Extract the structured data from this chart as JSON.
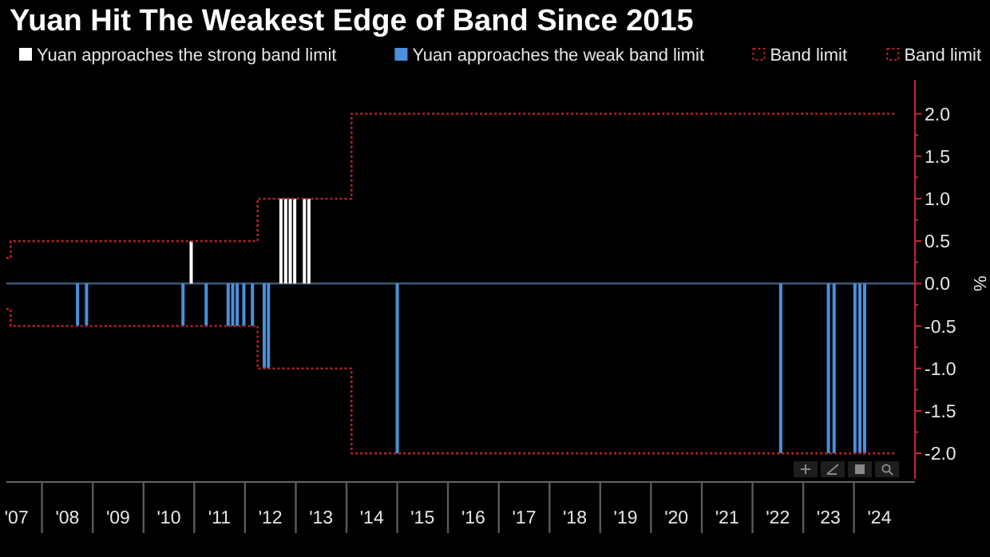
{
  "chart_data": {
    "type": "bar",
    "title": "Yuan Hit The Weakest Edge of Band Since 2015",
    "ylabel": "%",
    "legend": "top left",
    "grid": false,
    "ref_lines": [
      {
        "axis": "y",
        "value": 0,
        "color": "#3a5a78"
      }
    ],
    "xlim": [
      "2007-04-20",
      "2025-03-15"
    ],
    "ylim": [
      -2.3,
      2.4
    ],
    "xticks": [
      {
        "value": "2007-07-02",
        "label": "'07"
      },
      {
        "value": "2008-01-01",
        "label": null
      },
      {
        "value": "2008-07-02",
        "label": "'08"
      },
      {
        "value": "2009-01-01",
        "label": null
      },
      {
        "value": "2009-07-02",
        "label": "'09"
      },
      {
        "value": "2010-01-01",
        "label": null
      },
      {
        "value": "2010-07-02",
        "label": "'10"
      },
      {
        "value": "2011-01-01",
        "label": null
      },
      {
        "value": "2011-07-02",
        "label": "'11"
      },
      {
        "value": "2012-01-01",
        "label": null
      },
      {
        "value": "2012-07-02",
        "label": "'12"
      },
      {
        "value": "2013-01-01",
        "label": null
      },
      {
        "value": "2013-07-02",
        "label": "'13"
      },
      {
        "value": "2014-01-01",
        "label": null
      },
      {
        "value": "2014-07-02",
        "label": "'14"
      },
      {
        "value": "2015-01-01",
        "label": null
      },
      {
        "value": "2015-07-02",
        "label": "'15"
      },
      {
        "value": "2016-01-01",
        "label": null
      },
      {
        "value": "2016-07-02",
        "label": "'16"
      },
      {
        "value": "2017-01-01",
        "label": null
      },
      {
        "value": "2017-07-02",
        "label": "'17"
      },
      {
        "value": "2018-01-01",
        "label": null
      },
      {
        "value": "2018-07-02",
        "label": "'18"
      },
      {
        "value": "2019-01-01",
        "label": null
      },
      {
        "value": "2019-07-02",
        "label": "'19"
      },
      {
        "value": "2020-01-01",
        "label": null
      },
      {
        "value": "2020-07-02",
        "label": "'20"
      },
      {
        "value": "2021-01-01",
        "label": null
      },
      {
        "value": "2021-07-02",
        "label": "'21"
      },
      {
        "value": "2022-01-01",
        "label": null
      },
      {
        "value": "2022-07-02",
        "label": "'22"
      },
      {
        "value": "2023-01-01",
        "label": null
      },
      {
        "value": "2023-07-02",
        "label": "'23"
      },
      {
        "value": "2024-01-01",
        "label": null
      },
      {
        "value": "2024-07-02",
        "label": "'24"
      }
    ],
    "yticks": [
      {
        "value": -2,
        "label": "-2.0"
      },
      {
        "value": -1.5,
        "label": "-1.5"
      },
      {
        "value": -1,
        "label": "-1.0"
      },
      {
        "value": -0.5,
        "label": "-0.5"
      },
      {
        "value": 0,
        "label": "0.0"
      },
      {
        "value": 0.5,
        "label": "0.5"
      },
      {
        "value": 1,
        "label": "1.0"
      },
      {
        "value": 1.5,
        "label": "1.5"
      },
      {
        "value": 2,
        "label": "2.0"
      }
    ],
    "series": [
      {
        "name": "Yuan approaches the strong band limit",
        "color": "#ffffff",
        "x": [
          "2010-12-10",
          "2012-09-16",
          "2012-10-20",
          "2012-11-22",
          "2012-12-24",
          "2013-03-04",
          "2013-04-05"
        ],
        "values": [
          0.5,
          1,
          1,
          1,
          1,
          1,
          1
        ]
      },
      {
        "name": "Yuan approaches the weak band limit",
        "color": "#4a90dc",
        "x": [
          "2008-09-13",
          "2008-11-17",
          "2010-10-12",
          "2011-03-28",
          "2011-09-02",
          "2011-10-05",
          "2011-11-06",
          "2011-12-24",
          "2012-02-24",
          "2012-05-19",
          "2012-06-18",
          "2015-01-01",
          "2022-07-23",
          "2023-07-01",
          "2023-08-11",
          "2024-01-08",
          "2024-02-13",
          "2024-03-18"
        ],
        "values": [
          -0.5,
          -0.5,
          -0.5,
          -0.5,
          -0.5,
          -0.5,
          -0.5,
          -0.5,
          -0.5,
          -1,
          -1,
          -2,
          -2,
          -2,
          -2,
          -2,
          -2,
          -2
        ]
      },
      {
        "name": "Band limit",
        "type": "step",
        "color": "#b0242b",
        "line_style": "dotted",
        "marker": "none",
        "x": [
          "2007-04-20",
          "2007-05-21",
          "2012-04-01",
          "2014-02-06",
          "2024-10-19"
        ],
        "values": [
          0.3,
          0.5,
          1,
          2,
          2
        ]
      },
      {
        "name": "Band limit",
        "type": "step",
        "color": "#b0242b",
        "line_style": "dotted",
        "marker": "none",
        "x": [
          "2007-04-20",
          "2007-05-21",
          "2012-04-01",
          "2014-02-06",
          "2024-10-19"
        ],
        "values": [
          -0.3,
          -0.5,
          -1,
          -2,
          -2
        ]
      }
    ]
  }
}
